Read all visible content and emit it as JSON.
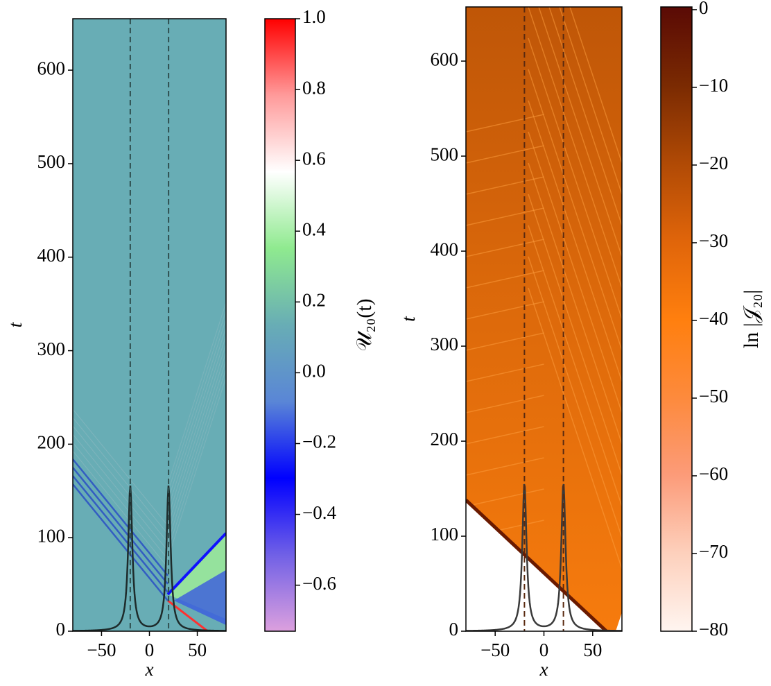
{
  "chart_data": [
    {
      "type": "heatmap",
      "xlabel": "x",
      "ylabel": "t",
      "xlim": [
        -80,
        80
      ],
      "xticks": [
        {
          "value": -50,
          "label": "−50"
        },
        0,
        50
      ],
      "ylim": [
        0,
        655
      ],
      "yticks": [
        0,
        100,
        200,
        300,
        400,
        500,
        600
      ],
      "vlines": [
        -20,
        20
      ],
      "vline_color": "#2f4f4f",
      "field_color": "#68adb5",
      "curve_color": "#1e2b2b",
      "colorbar": {
        "label": "𝒰₂₀(t)",
        "clim": [
          -0.73,
          1.0
        ],
        "ticks": [
          {
            "value": -0.6,
            "label": "−0.6"
          },
          {
            "value": -0.4,
            "label": "−0.4"
          },
          {
            "value": -0.2,
            "label": "−0.2"
          },
          {
            "value": 0,
            "label": "0.0"
          },
          0.2,
          0.4,
          0.6,
          0.8,
          {
            "value": 1,
            "label": "1.0"
          }
        ],
        "colors": [
          "#dca0de",
          "#7060e6",
          "#0000ff",
          "#5a86d6",
          "#68adb5",
          "#8fea8f",
          "#ffffff",
          "#ff9a9a",
          "#ff0000"
        ]
      }
    },
    {
      "type": "heatmap",
      "xlabel": "x",
      "ylabel": "t",
      "xlim": [
        -80,
        80
      ],
      "xticks": [
        {
          "value": -50,
          "label": "−50"
        },
        0,
        50
      ],
      "ylim": [
        0,
        657
      ],
      "yticks": [
        0,
        100,
        200,
        300,
        400,
        500,
        600
      ],
      "vlines": [
        -20,
        20
      ],
      "vline_color": "#5a2a10",
      "field_color": "#e2720c",
      "curve_color": "#3a3a3a",
      "colorbar": {
        "label": "ln |𝒥₂₀|",
        "clim": [
          -80,
          0.35
        ],
        "ticks": [
          {
            "value": -80,
            "label": "−80"
          },
          {
            "value": -70,
            "label": "−70"
          },
          {
            "value": -60,
            "label": "−60"
          },
          {
            "value": -50,
            "label": "−50"
          },
          {
            "value": -40,
            "label": "−40"
          },
          {
            "value": -30,
            "label": "−30"
          },
          {
            "value": -20,
            "label": "−20"
          },
          {
            "value": -10,
            "label": "−10"
          },
          0
        ],
        "colors": [
          "#fff5f0",
          "#fdd0bc",
          "#fc9b79",
          "#fd8a3c",
          "#ff7f0e",
          "#e0650a",
          "#b04a05",
          "#7a2a02",
          "#5a0a05"
        ]
      }
    }
  ]
}
